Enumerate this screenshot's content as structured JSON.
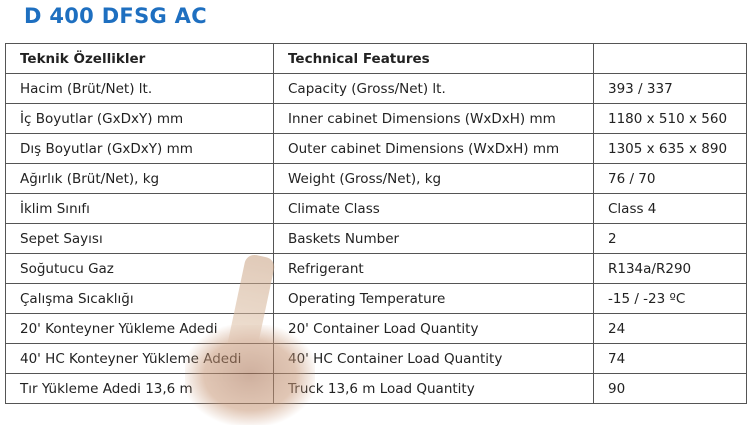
{
  "title": "D 400 DFSG AC",
  "header": [
    "Teknik Özellikler",
    "Technical Features",
    ""
  ],
  "rows": [
    [
      "Hacim (Brüt/Net) lt.",
      "Capacity (Gross/Net) lt.",
      "393 / 337"
    ],
    [
      "İç Boyutlar (GxDxY) mm",
      "Inner cabinet Dimensions (WxDxH) mm",
      "1180 x 510 x 560"
    ],
    [
      "Dış Boyutlar (GxDxY) mm",
      "Outer cabinet Dimensions (WxDxH) mm",
      "1305 x 635 x 890"
    ],
    [
      "Ağırlık (Brüt/Net), kg",
      "Weight (Gross/Net), kg",
      "76 / 70"
    ],
    [
      "İklim Sınıfı",
      "Climate Class",
      "Class 4"
    ],
    [
      "Sepet Sayısı",
      "Baskets Number",
      "2"
    ],
    [
      "Soğutucu Gaz",
      "Refrigerant",
      "R134a/R290"
    ],
    [
      "Çalışma Sıcaklığı",
      "Operating Temperature",
      "-15 / -23 ºC"
    ],
    [
      "20' Konteyner Yükleme Adedi",
      "20' Container Load Quantity",
      "24"
    ],
    [
      "40' HC Konteyner Yükleme Adedi",
      "40' HC Container Load Quantity",
      "74"
    ],
    [
      "Tır Yükleme Adedi 13,6 m",
      "Truck 13,6 m Load Quantity",
      "90"
    ]
  ]
}
